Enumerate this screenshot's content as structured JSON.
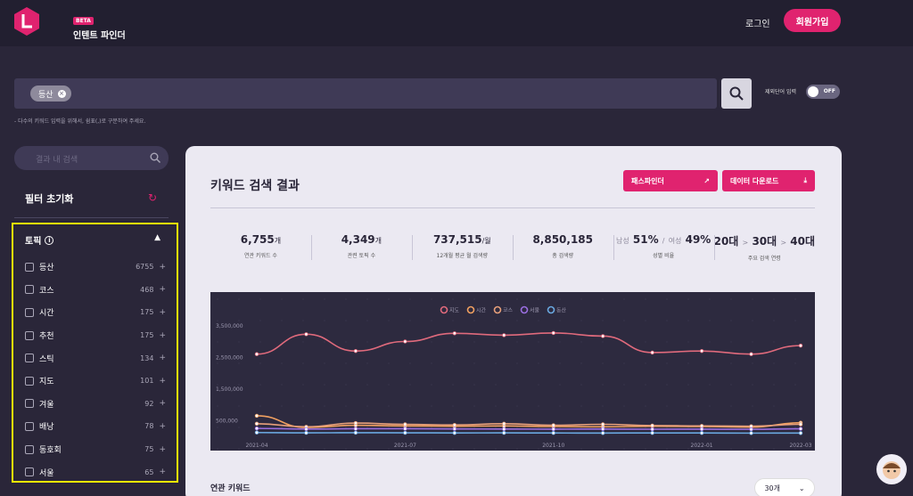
{
  "header": {
    "badge": "BETA",
    "brand": "인텐트 파인더",
    "login": "로그인",
    "signup": "회원가입"
  },
  "search": {
    "chip": "등산",
    "compare_label": "제외단어 입력",
    "toggle": "OFF",
    "hint": "- 다수의 키워드 입력을 위해서, 쉼표(,)로 구분하여 주세요."
  },
  "sidebar": {
    "search_placeholder": "결과 내 검색",
    "reset": "필터 초기화",
    "topic_title": "토픽",
    "topics": [
      {
        "label": "등산",
        "count": "6755"
      },
      {
        "label": "코스",
        "count": "468"
      },
      {
        "label": "시간",
        "count": "175"
      },
      {
        "label": "추천",
        "count": "175"
      },
      {
        "label": "스틱",
        "count": "134"
      },
      {
        "label": "지도",
        "count": "101"
      },
      {
        "label": "겨울",
        "count": "92"
      },
      {
        "label": "배낭",
        "count": "78"
      },
      {
        "label": "동호회",
        "count": "75"
      },
      {
        "label": "서울",
        "count": "65"
      }
    ]
  },
  "main": {
    "title": "키워드 검색 결과",
    "path_button": "패스파인더",
    "download_button": "데이터 다운로드",
    "stats": [
      {
        "value": "6,755",
        "unit": "개",
        "label": "연관 키워드 수"
      },
      {
        "value": "4,349",
        "unit": "개",
        "label": "관련 토픽 수"
      },
      {
        "value": "737,515",
        "unit": "/월",
        "label": "12개월 평균 월 검색량"
      },
      {
        "value": "8,850,185",
        "unit": "",
        "label": "총 검색량"
      },
      {
        "label": "성별 비율",
        "male_label": "남성",
        "male": "51%",
        "female_label": "여성",
        "female": "49%"
      },
      {
        "label": "주요 검색 연령",
        "a1": "20대",
        "a2": "30대",
        "a3": "40대",
        "sep": ">"
      }
    ],
    "related_title": "연관 키워드",
    "count_select": "30개"
  },
  "chart_data": {
    "type": "line",
    "x": [
      "2021-04",
      "2021-05",
      "2021-06",
      "2021-07",
      "2021-08",
      "2021-09",
      "2021-10",
      "2021-11",
      "2021-12",
      "2022-01",
      "2022-02",
      "2022-03"
    ],
    "x_ticks": [
      "2021-04",
      "2021-07",
      "2021-10",
      "2022-01",
      "2022-03"
    ],
    "y_ticks": [
      "3,500,000",
      "2,500,000",
      "1,500,000",
      "500,000"
    ],
    "ylim": [
      0,
      4000000
    ],
    "series": [
      {
        "name": "지도",
        "color": "#e06a7c",
        "values": [
          2600000,
          3230000,
          2700000,
          3000000,
          3260000,
          3200000,
          3270000,
          3170000,
          2650000,
          2700000,
          2600000,
          2870000
        ]
      },
      {
        "name": "시간",
        "color": "#f0a060",
        "values": [
          650000,
          280000,
          350000,
          330000,
          320000,
          330000,
          310000,
          300000,
          320000,
          310000,
          290000,
          430000
        ]
      },
      {
        "name": "코스",
        "color": "#e8a07a",
        "values": [
          400000,
          300000,
          420000,
          380000,
          360000,
          400000,
          350000,
          380000,
          340000,
          330000,
          320000,
          380000
        ]
      },
      {
        "name": "서울",
        "color": "#9a6ee0",
        "values": [
          250000,
          230000,
          240000,
          240000,
          235000,
          230000,
          228000,
          232000,
          225000,
          228000,
          222000,
          238000
        ]
      },
      {
        "name": "동산",
        "color": "#6aa8e0",
        "values": [
          120000,
          110000,
          115000,
          112000,
          108000,
          110000,
          106000,
          104000,
          108000,
          106000,
          102000,
          104000
        ]
      }
    ],
    "legend": "top-center",
    "grid": false
  },
  "colors": {
    "accent": "#e0236f",
    "highlight": "#f5f000"
  }
}
